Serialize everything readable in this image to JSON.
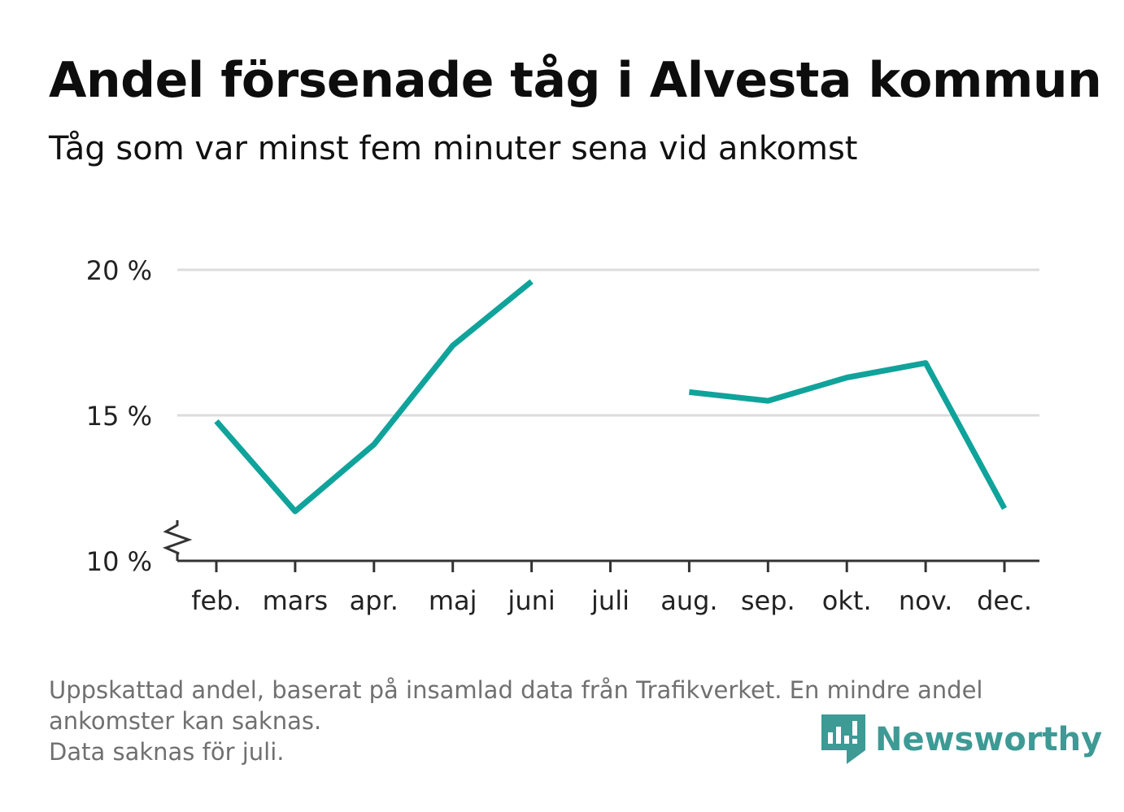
{
  "title": "Andel försenade tåg i Alvesta kommun",
  "subtitle": "Tåg som var minst fem minuter sena vid ankomst",
  "notes": [
    "Uppskattad andel, baserat på insamlad data från Trafikverket. En mindre andel",
    "ankomster kan saknas.",
    "Data saknas för juli."
  ],
  "brand": {
    "name": "Newsworthy",
    "icon": "newsworthy-logo-icon",
    "color": "#3d9a95"
  },
  "chart_data": {
    "type": "line",
    "categories": [
      "feb.",
      "mars",
      "apr.",
      "maj",
      "juni",
      "juli",
      "aug.",
      "sep.",
      "okt.",
      "nov.",
      "dec."
    ],
    "series": [
      {
        "values": [
          14.8,
          11.7,
          14.0,
          17.4,
          19.6,
          null,
          15.8,
          15.5,
          16.3,
          16.8,
          11.8
        ],
        "color": "#0fa39b"
      }
    ],
    "yticks": [
      {
        "value": 10,
        "label": "10 %"
      },
      {
        "value": 15,
        "label": "15 %"
      },
      {
        "value": 20,
        "label": "20 %"
      }
    ],
    "ylim": [
      10,
      20
    ],
    "ylabel": "",
    "xlabel": "",
    "grid": true,
    "y_axis_break": true,
    "legend": "none"
  }
}
